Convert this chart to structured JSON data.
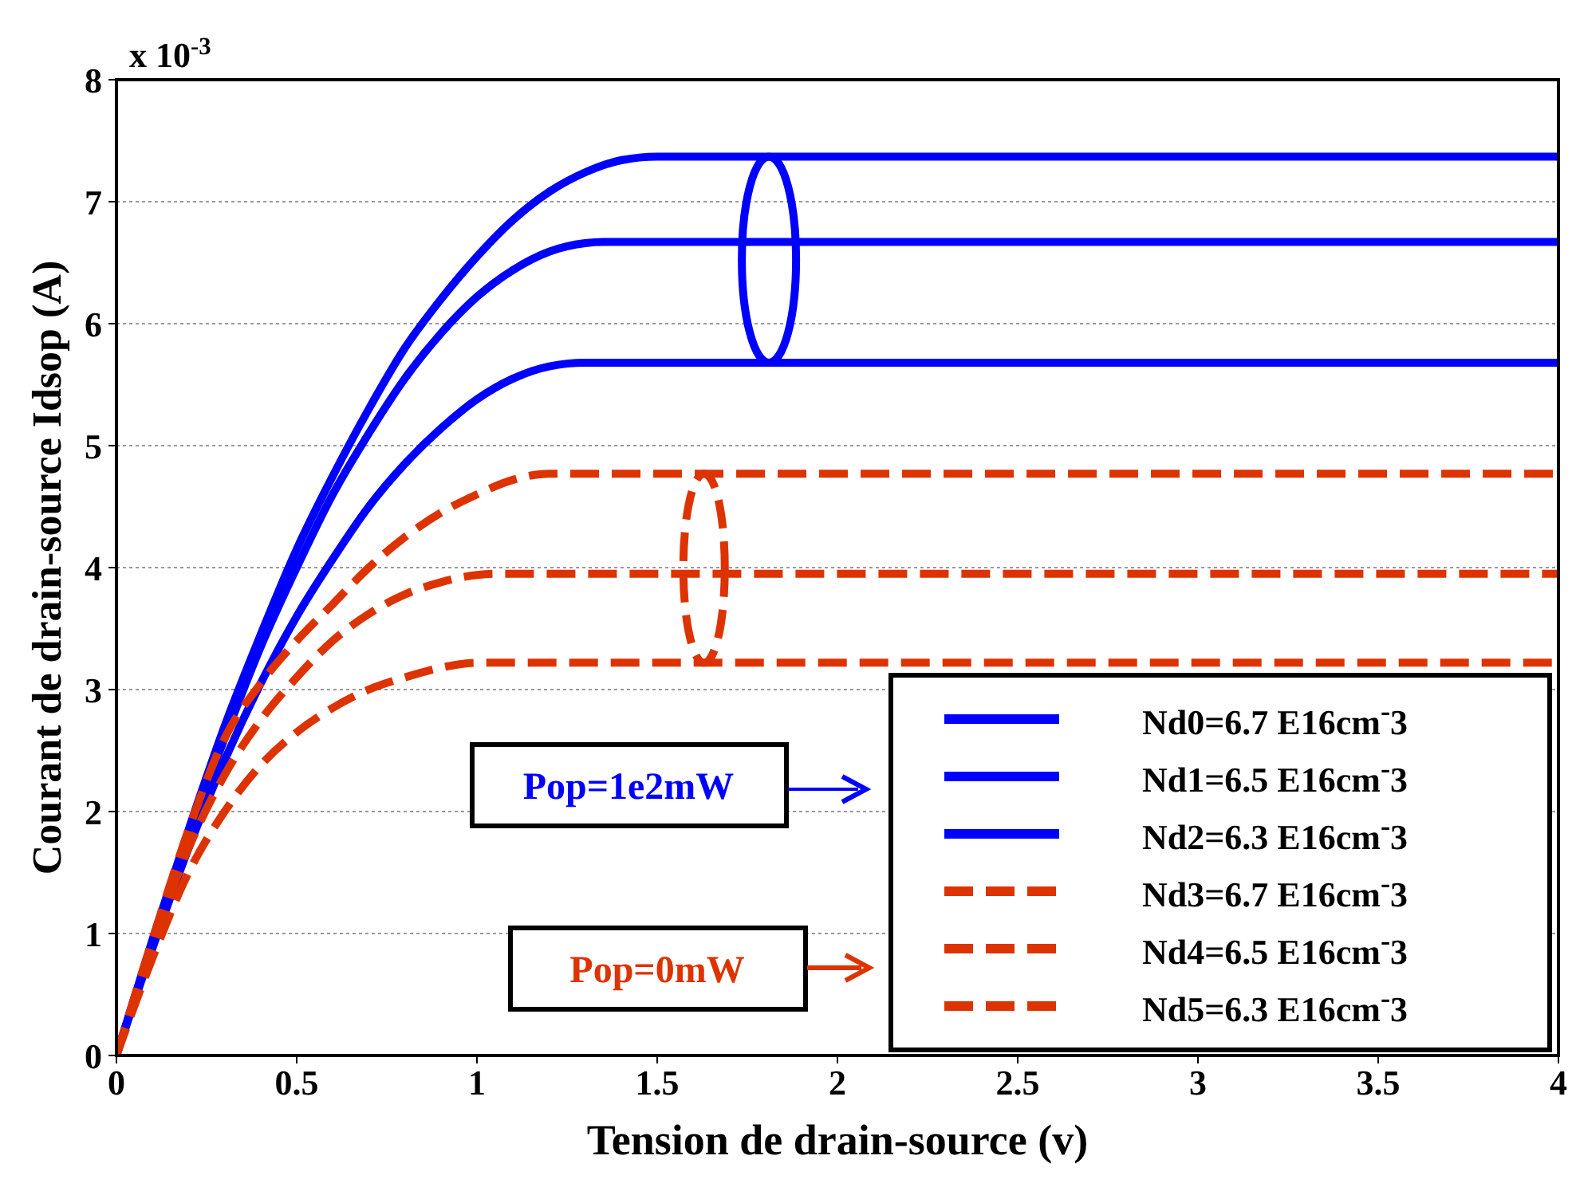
{
  "chart_data": {
    "type": "line",
    "xlabel": "Tension de drain-source (v)",
    "ylabel": "Courant de drain-source Idsop (A)",
    "xlim": [
      0,
      4
    ],
    "xticks": [
      0,
      0.5,
      1,
      1.5,
      2,
      2.5,
      3,
      3.5,
      4
    ],
    "ylim": [
      0,
      8
    ],
    "yticks": [
      0,
      1,
      2,
      3,
      4,
      5,
      6,
      7,
      8
    ],
    "grid": "y",
    "legend": "bottom right",
    "marker": "none",
    "annotations": [
      "x 10$^{-3}$",
      "Pop=1e2mW",
      "Pop=0mW"
    ],
    "series": [
      {
        "name": "Nd0=6.7 E16cm$^{-}$3",
        "color": "#0000ff",
        "line_style": "solid",
        "x": [
          0,
          0.1,
          0.2,
          0.3,
          0.4,
          0.5,
          0.6,
          0.7,
          0.8,
          0.9,
          1.0,
          1.1,
          1.2,
          1.3,
          1.4,
          1.5,
          4
        ],
        "values": [
          0,
          0.95,
          1.85,
          2.7,
          3.45,
          4.15,
          4.75,
          5.3,
          5.8,
          6.2,
          6.55,
          6.85,
          7.08,
          7.24,
          7.34,
          7.37,
          7.37
        ]
      },
      {
        "name": "Nd1=6.5 E16cm$^{-}$3",
        "color": "#0000ff",
        "line_style": "solid",
        "x": [
          0,
          0.1,
          0.2,
          0.3,
          0.4,
          0.5,
          0.6,
          0.7,
          0.8,
          0.9,
          1.0,
          1.1,
          1.2,
          1.3,
          1.35,
          4
        ],
        "values": [
          0,
          0.93,
          1.8,
          2.6,
          3.35,
          4.0,
          4.6,
          5.1,
          5.55,
          5.92,
          6.22,
          6.44,
          6.59,
          6.66,
          6.67,
          6.67
        ]
      },
      {
        "name": "Nd2=6.3 E16cm$^{-}$3",
        "color": "#0000ff",
        "line_style": "solid",
        "x": [
          0,
          0.1,
          0.2,
          0.3,
          0.4,
          0.5,
          0.6,
          0.7,
          0.8,
          0.9,
          1.0,
          1.1,
          1.2,
          1.3,
          4
        ],
        "values": [
          0,
          0.88,
          1.7,
          2.42,
          3.05,
          3.6,
          4.07,
          4.5,
          4.85,
          5.14,
          5.38,
          5.55,
          5.65,
          5.68,
          5.68
        ]
      },
      {
        "name": "Nd3=6.7 E16cm$^{-}$3",
        "color": "#dd3300",
        "line_style": "dashed",
        "x": [
          0,
          0.1,
          0.2,
          0.3,
          0.4,
          0.5,
          0.6,
          0.7,
          0.8,
          0.9,
          1.0,
          1.1,
          1.2,
          4
        ],
        "values": [
          0,
          0.95,
          1.85,
          2.6,
          3.05,
          3.4,
          3.7,
          4.0,
          4.25,
          4.45,
          4.6,
          4.72,
          4.77,
          4.77
        ]
      },
      {
        "name": "Nd4=6.5 E16cm$^{-}$3",
        "color": "#dd3300",
        "line_style": "dashed",
        "x": [
          0,
          0.1,
          0.2,
          0.3,
          0.4,
          0.5,
          0.6,
          0.7,
          0.8,
          0.9,
          1.0,
          1.05,
          4
        ],
        "values": [
          0,
          0.9,
          1.7,
          2.3,
          2.75,
          3.1,
          3.4,
          3.62,
          3.78,
          3.88,
          3.94,
          3.95,
          3.95
        ]
      },
      {
        "name": "Nd5=6.3 E16cm$^{-}$3",
        "color": "#dd3300",
        "line_style": "dashed",
        "x": [
          0,
          0.1,
          0.2,
          0.3,
          0.4,
          0.5,
          0.6,
          0.7,
          0.8,
          0.9,
          1.0,
          4
        ],
        "values": [
          0,
          0.8,
          1.5,
          2.0,
          2.38,
          2.65,
          2.85,
          3.0,
          3.1,
          3.18,
          3.22,
          3.22
        ]
      }
    ]
  }
}
